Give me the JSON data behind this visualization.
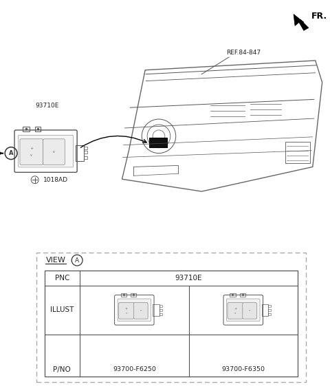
{
  "bg_color": "#ffffff",
  "fig_width": 4.8,
  "fig_height": 5.68,
  "dpi": 100,
  "fr_label": "FR.",
  "ref_label": "REF.84-847",
  "part_93710E": "93710E",
  "part_1018AD": "1018AD",
  "view_label": "VIEW",
  "pnc_label": "PNC",
  "pnc_value": "93710E",
  "illust_label": "ILLUST",
  "pno_label": "P/NO",
  "pno_left": "93700-F6250",
  "pno_right": "93700-F6350",
  "text_color": "#222222",
  "line_color": "#555555"
}
